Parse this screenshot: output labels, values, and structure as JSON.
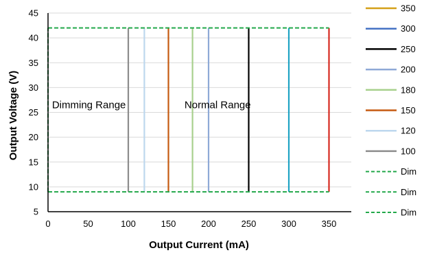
{
  "chart_data": {
    "type": "line",
    "title": "",
    "xlabel": "Output Current  (mA)",
    "ylabel": "Output Voltage  (V)",
    "xlim": [
      0,
      350
    ],
    "ylim": [
      5,
      45
    ],
    "xticks": [
      "0",
      "50",
      "100",
      "150",
      "200",
      "250",
      "300",
      "350"
    ],
    "yticks": [
      "5",
      "10",
      "15",
      "20",
      "25",
      "30",
      "35",
      "40",
      "45"
    ],
    "grid": "horizontal",
    "legend_position": "right",
    "annotations": [
      {
        "text": "Dimming Range",
        "x": 5,
        "y": 26.5
      },
      {
        "text": "Normal Range",
        "x": 170,
        "y": 26.5
      }
    ],
    "series": [
      {
        "name": "350",
        "color": "#D6281F",
        "dash": "solid",
        "x": [
          350,
          350
        ],
        "y": [
          9,
          42
        ]
      },
      {
        "name": "300",
        "color": "#1FA3C4",
        "dash": "solid",
        "x": [
          300,
          300
        ],
        "y": [
          9,
          42
        ]
      },
      {
        "name": "250",
        "color": "#000000",
        "dash": "solid",
        "x": [
          250,
          250
        ],
        "y": [
          9,
          42
        ]
      },
      {
        "name": "200",
        "color": "#8EA9D6",
        "dash": "solid",
        "x": [
          200,
          200
        ],
        "y": [
          9,
          42
        ]
      },
      {
        "name": "180",
        "color": "#A8D08D",
        "dash": "solid",
        "x": [
          180,
          180
        ],
        "y": [
          9,
          42
        ]
      },
      {
        "name": "150",
        "color": "#C55A11",
        "dash": "solid",
        "x": [
          150,
          150
        ],
        "y": [
          9,
          42
        ]
      },
      {
        "name": "120",
        "color": "#BDD7EE",
        "dash": "solid",
        "x": [
          120,
          120
        ],
        "y": [
          9,
          42
        ]
      },
      {
        "name": "100",
        "color": "#8C8C8C",
        "dash": "solid",
        "x": [
          100,
          100
        ],
        "y": [
          9,
          42
        ]
      },
      {
        "name": "Dim",
        "color": "#22A84A",
        "dash": "dashed",
        "x": [
          0,
          350
        ],
        "y": [
          42,
          42
        ]
      },
      {
        "name": "Dim",
        "color": "#22A84A",
        "dash": "dashed",
        "x": [
          0,
          350
        ],
        "y": [
          9,
          9
        ]
      },
      {
        "name": "Dim",
        "color": "#22A84A",
        "dash": "dashed",
        "x": [
          0,
          0
        ],
        "y": [
          9,
          42
        ]
      }
    ],
    "legend": [
      {
        "label": "350",
        "color": "#D4A017",
        "dash": "solid"
      },
      {
        "label": "300",
        "color": "#4472C4",
        "dash": "solid"
      },
      {
        "label": "250",
        "color": "#000000",
        "dash": "solid"
      },
      {
        "label": "200",
        "color": "#8EA9D6",
        "dash": "solid"
      },
      {
        "label": "180",
        "color": "#A8D08D",
        "dash": "solid"
      },
      {
        "label": "150",
        "color": "#C55A11",
        "dash": "solid"
      },
      {
        "label": "120",
        "color": "#BDD7EE",
        "dash": "solid"
      },
      {
        "label": "100",
        "color": "#8C8C8C",
        "dash": "solid"
      },
      {
        "label": "Dim",
        "color": "#22A84A",
        "dash": "dashed"
      },
      {
        "label": "Dim",
        "color": "#22A84A",
        "dash": "dashed"
      },
      {
        "label": "Dim",
        "color": "#22A84A",
        "dash": "dashed"
      }
    ]
  }
}
